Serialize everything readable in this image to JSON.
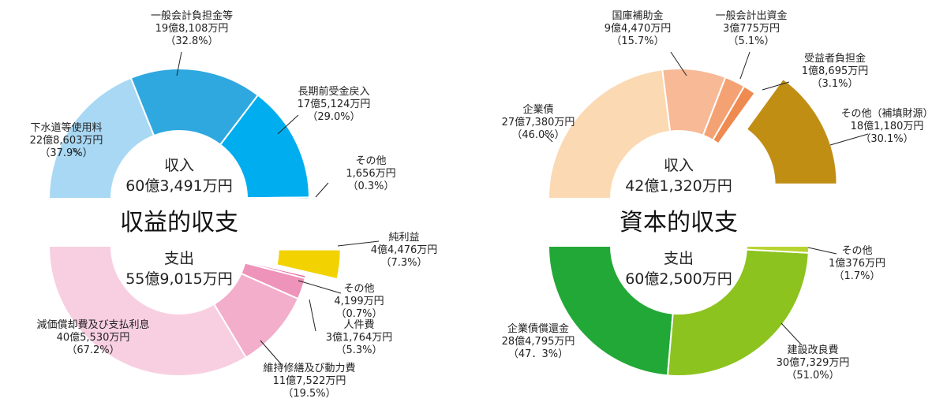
{
  "chart_data": [
    {
      "type": "pie",
      "title": "収益的収支",
      "subtitle": "収入",
      "total": "60億3,491万円",
      "slices": [
        {
          "label": "下水道等使用料",
          "amount": "22億8,603万円",
          "percent": "（37.9%）",
          "value": 37.9,
          "color": "#a8d8f4"
        },
        {
          "label": "一般会計負担金等",
          "amount": "19億8,108万円",
          "percent": "（32.8%）",
          "value": 32.8,
          "color": "#2fa8e0"
        },
        {
          "label": "長期前受金戻入",
          "amount": "17億5,124万円",
          "percent": "（29.0%）",
          "value": 29.0,
          "color": "#00aeef"
        },
        {
          "label": "その他",
          "amount": "1,656万円",
          "percent": "（0.3%）",
          "value": 0.3,
          "color": "#1a7fc1"
        }
      ]
    },
    {
      "type": "pie",
      "title": "収益的収支",
      "subtitle": "支出",
      "total": "55億9,015万円",
      "slices": [
        {
          "label": "減価償却費及び支払利息",
          "amount": "40億5,530万円",
          "percent": "（67.2%）",
          "value": 67.2,
          "color": "#f8cfe1"
        },
        {
          "label": "維持修繕及び動力費",
          "amount": "11億7,522万円",
          "percent": "（19.5%）",
          "value": 19.5,
          "color": "#f2aecb"
        },
        {
          "label": "人件費",
          "amount": "3億1,764万円",
          "percent": "（5.3%）",
          "value": 5.3,
          "color": "#ee93ba"
        },
        {
          "label": "その他",
          "amount": "4,199万円",
          "percent": "（0.7%）",
          "value": 0.7,
          "color": "#e56aa0"
        },
        {
          "label": "純利益",
          "amount": "4億4,476万円",
          "percent": "（7.3%）",
          "value": 7.3,
          "color": "#f2d200"
        }
      ]
    },
    {
      "type": "pie",
      "title": "資本的収支",
      "subtitle": "収入",
      "total": "42億1,320万円",
      "slices": [
        {
          "label": "企業債",
          "amount": "27億7,380万円",
          "percent": "（46.0%）",
          "value": 46.0,
          "color": "#fbd9b3"
        },
        {
          "label": "国庫補助金",
          "amount": "9億4,470万円",
          "percent": "（15.7%）",
          "value": 15.7,
          "color": "#f7b996"
        },
        {
          "label": "一般会計出資金",
          "amount": "3億775万円",
          "percent": "（5.1%）",
          "value": 5.1,
          "color": "#f4a273"
        },
        {
          "label": "受益者負担金",
          "amount": "1億8,695万円",
          "percent": "（3.1%）",
          "value": 3.1,
          "color": "#ef8a50"
        },
        {
          "label": "その他（補填財源）",
          "amount": "18億1,180万円",
          "percent": "（30.1%）",
          "value": 30.1,
          "color": "#c18e14"
        }
      ]
    },
    {
      "type": "pie",
      "title": "資本的収支",
      "subtitle": "支出",
      "total": "60億2,500万円",
      "slices": [
        {
          "label": "企業債償還金",
          "amount": "28億4,795万円",
          "percent": "（47．3%）",
          "value": 47.3,
          "color": "#22a836"
        },
        {
          "label": "建設改良費",
          "amount": "30億7,329万円",
          "percent": "（51.0%）",
          "value": 51.0,
          "color": "#8cc31f"
        },
        {
          "label": "その他",
          "amount": "1億376万円",
          "percent": "（1.7%）",
          "value": 1.7,
          "color": "#b8d430"
        }
      ]
    }
  ]
}
